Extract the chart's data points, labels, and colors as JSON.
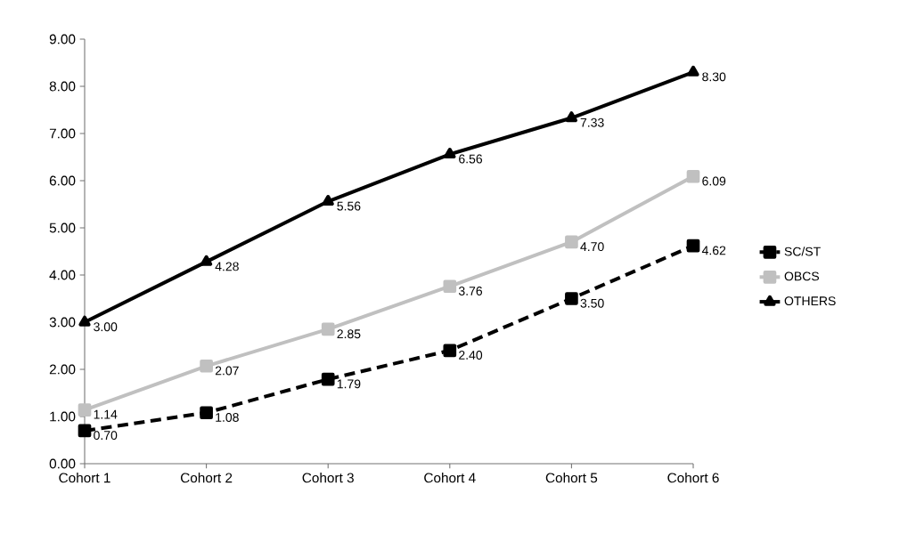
{
  "chart_data": {
    "type": "line",
    "categories": [
      "Cohort 1",
      "Cohort 2",
      "Cohort 3",
      "Cohort 4",
      "Cohort 5",
      "Cohort 6"
    ],
    "series": [
      {
        "name": "SC/ST",
        "color": "#000000",
        "marker": "square",
        "line_style": "dashed",
        "values": [
          0.7,
          1.08,
          1.79,
          2.4,
          3.5,
          4.62
        ],
        "value_labels": [
          "0.70",
          "1.08",
          "1.79",
          "2.40",
          "3.50",
          "4.62"
        ]
      },
      {
        "name": "OBCS",
        "color": "#c0c0c0",
        "marker": "square",
        "line_style": "solid",
        "values": [
          1.14,
          2.07,
          2.85,
          3.76,
          4.7,
          6.09
        ],
        "value_labels": [
          "1.14",
          "2.07",
          "2.85",
          "3.76",
          "4.70",
          "6.09"
        ]
      },
      {
        "name": "OTHERS",
        "color": "#000000",
        "marker": "triangle",
        "line_style": "solid",
        "values": [
          3.0,
          4.28,
          5.56,
          6.56,
          7.33,
          8.3
        ],
        "value_labels": [
          "3.00",
          "4.28",
          "5.56",
          "6.56",
          "7.33",
          "8.30"
        ]
      }
    ],
    "ylim": [
      0,
      9
    ],
    "yticks": [
      {
        "value": 0,
        "label": "0.00"
      },
      {
        "value": 1,
        "label": "1.00"
      },
      {
        "value": 2,
        "label": "2.00"
      },
      {
        "value": 3,
        "label": "3.00"
      },
      {
        "value": 4,
        "label": "4.00"
      },
      {
        "value": 5,
        "label": "5.00"
      },
      {
        "value": 6,
        "label": "6.00"
      },
      {
        "value": 7,
        "label": "7.00"
      },
      {
        "value": 8,
        "label": "8.00"
      },
      {
        "value": 9,
        "label": "9.00"
      }
    ],
    "grid": false,
    "legend": "right"
  }
}
